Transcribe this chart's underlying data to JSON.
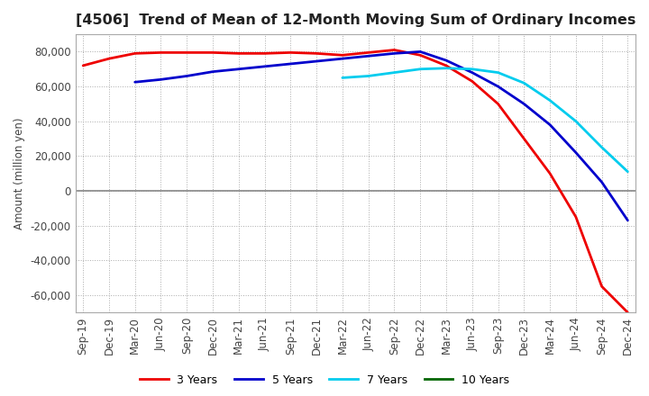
{
  "title": "[4506]  Trend of Mean of 12-Month Moving Sum of Ordinary Incomes",
  "ylabel": "Amount (million yen)",
  "background_color": "#ffffff",
  "plot_bg_color": "#ffffff",
  "grid_color": "#aaaaaa",
  "x_labels": [
    "Sep-19",
    "Dec-19",
    "Mar-20",
    "Jun-20",
    "Sep-20",
    "Dec-20",
    "Mar-21",
    "Jun-21",
    "Sep-21",
    "Dec-21",
    "Mar-22",
    "Jun-22",
    "Sep-22",
    "Dec-22",
    "Mar-23",
    "Jun-23",
    "Sep-23",
    "Dec-23",
    "Mar-24",
    "Jun-24",
    "Sep-24",
    "Dec-24"
  ],
  "series": {
    "3 Years": {
      "color": "#ee0000",
      "values": [
        72000,
        76000,
        79000,
        79500,
        79500,
        79500,
        79000,
        79000,
        79500,
        79000,
        78000,
        79500,
        81000,
        78000,
        72000,
        63000,
        50000,
        30000,
        10000,
        -15000,
        -55000,
        -70000
      ]
    },
    "5 Years": {
      "color": "#0000cc",
      "values": [
        null,
        null,
        62500,
        64000,
        66000,
        68500,
        70000,
        71500,
        73000,
        74500,
        76000,
        77500,
        79000,
        80000,
        75000,
        68000,
        60000,
        50000,
        38000,
        22000,
        5000,
        -17000
      ]
    },
    "7 Years": {
      "color": "#00ccee",
      "values": [
        null,
        null,
        null,
        null,
        null,
        null,
        null,
        null,
        null,
        null,
        65000,
        66000,
        68000,
        70000,
        70500,
        70000,
        68000,
        62000,
        52000,
        40000,
        25000,
        11000
      ]
    },
    "10 Years": {
      "color": "#006600",
      "values": [
        null,
        null,
        null,
        null,
        null,
        null,
        null,
        null,
        null,
        null,
        null,
        null,
        null,
        null,
        null,
        null,
        null,
        null,
        null,
        null,
        null,
        null
      ]
    }
  },
  "ylim": [
    -70000,
    90000
  ],
  "yticks": [
    -60000,
    -40000,
    -20000,
    0,
    20000,
    40000,
    60000,
    80000
  ],
  "title_fontsize": 11.5,
  "axis_fontsize": 8.5,
  "legend_fontsize": 9
}
